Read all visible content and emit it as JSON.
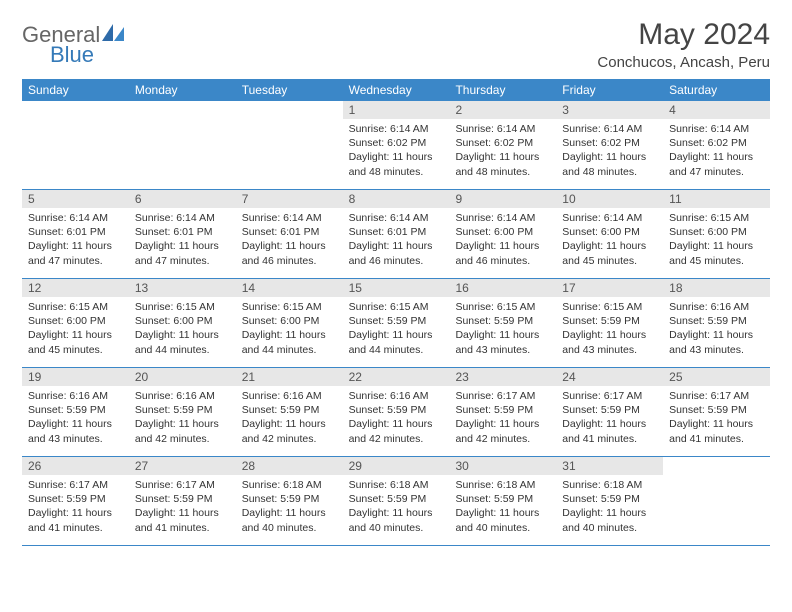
{
  "brand": {
    "line1": "General",
    "line2": "Blue"
  },
  "title": "May 2024",
  "location": "Conchucos, Ancash, Peru",
  "colors": {
    "header_bg": "#3b87c8",
    "header_text": "#ffffff",
    "daynum_bg": "#e7e7e7",
    "border": "#3b87c8",
    "brand_gray": "#666666",
    "brand_blue": "#357ab8"
  },
  "weekdays": [
    "Sunday",
    "Monday",
    "Tuesday",
    "Wednesday",
    "Thursday",
    "Friday",
    "Saturday"
  ],
  "weeks": [
    [
      {
        "num": "",
        "sunrise": "",
        "sunset": "",
        "daylight": ""
      },
      {
        "num": "",
        "sunrise": "",
        "sunset": "",
        "daylight": ""
      },
      {
        "num": "",
        "sunrise": "",
        "sunset": "",
        "daylight": ""
      },
      {
        "num": "1",
        "sunrise": "Sunrise: 6:14 AM",
        "sunset": "Sunset: 6:02 PM",
        "daylight": "Daylight: 11 hours and 48 minutes."
      },
      {
        "num": "2",
        "sunrise": "Sunrise: 6:14 AM",
        "sunset": "Sunset: 6:02 PM",
        "daylight": "Daylight: 11 hours and 48 minutes."
      },
      {
        "num": "3",
        "sunrise": "Sunrise: 6:14 AM",
        "sunset": "Sunset: 6:02 PM",
        "daylight": "Daylight: 11 hours and 48 minutes."
      },
      {
        "num": "4",
        "sunrise": "Sunrise: 6:14 AM",
        "sunset": "Sunset: 6:02 PM",
        "daylight": "Daylight: 11 hours and 47 minutes."
      }
    ],
    [
      {
        "num": "5",
        "sunrise": "Sunrise: 6:14 AM",
        "sunset": "Sunset: 6:01 PM",
        "daylight": "Daylight: 11 hours and 47 minutes."
      },
      {
        "num": "6",
        "sunrise": "Sunrise: 6:14 AM",
        "sunset": "Sunset: 6:01 PM",
        "daylight": "Daylight: 11 hours and 47 minutes."
      },
      {
        "num": "7",
        "sunrise": "Sunrise: 6:14 AM",
        "sunset": "Sunset: 6:01 PM",
        "daylight": "Daylight: 11 hours and 46 minutes."
      },
      {
        "num": "8",
        "sunrise": "Sunrise: 6:14 AM",
        "sunset": "Sunset: 6:01 PM",
        "daylight": "Daylight: 11 hours and 46 minutes."
      },
      {
        "num": "9",
        "sunrise": "Sunrise: 6:14 AM",
        "sunset": "Sunset: 6:00 PM",
        "daylight": "Daylight: 11 hours and 46 minutes."
      },
      {
        "num": "10",
        "sunrise": "Sunrise: 6:14 AM",
        "sunset": "Sunset: 6:00 PM",
        "daylight": "Daylight: 11 hours and 45 minutes."
      },
      {
        "num": "11",
        "sunrise": "Sunrise: 6:15 AM",
        "sunset": "Sunset: 6:00 PM",
        "daylight": "Daylight: 11 hours and 45 minutes."
      }
    ],
    [
      {
        "num": "12",
        "sunrise": "Sunrise: 6:15 AM",
        "sunset": "Sunset: 6:00 PM",
        "daylight": "Daylight: 11 hours and 45 minutes."
      },
      {
        "num": "13",
        "sunrise": "Sunrise: 6:15 AM",
        "sunset": "Sunset: 6:00 PM",
        "daylight": "Daylight: 11 hours and 44 minutes."
      },
      {
        "num": "14",
        "sunrise": "Sunrise: 6:15 AM",
        "sunset": "Sunset: 6:00 PM",
        "daylight": "Daylight: 11 hours and 44 minutes."
      },
      {
        "num": "15",
        "sunrise": "Sunrise: 6:15 AM",
        "sunset": "Sunset: 5:59 PM",
        "daylight": "Daylight: 11 hours and 44 minutes."
      },
      {
        "num": "16",
        "sunrise": "Sunrise: 6:15 AM",
        "sunset": "Sunset: 5:59 PM",
        "daylight": "Daylight: 11 hours and 43 minutes."
      },
      {
        "num": "17",
        "sunrise": "Sunrise: 6:15 AM",
        "sunset": "Sunset: 5:59 PM",
        "daylight": "Daylight: 11 hours and 43 minutes."
      },
      {
        "num": "18",
        "sunrise": "Sunrise: 6:16 AM",
        "sunset": "Sunset: 5:59 PM",
        "daylight": "Daylight: 11 hours and 43 minutes."
      }
    ],
    [
      {
        "num": "19",
        "sunrise": "Sunrise: 6:16 AM",
        "sunset": "Sunset: 5:59 PM",
        "daylight": "Daylight: 11 hours and 43 minutes."
      },
      {
        "num": "20",
        "sunrise": "Sunrise: 6:16 AM",
        "sunset": "Sunset: 5:59 PM",
        "daylight": "Daylight: 11 hours and 42 minutes."
      },
      {
        "num": "21",
        "sunrise": "Sunrise: 6:16 AM",
        "sunset": "Sunset: 5:59 PM",
        "daylight": "Daylight: 11 hours and 42 minutes."
      },
      {
        "num": "22",
        "sunrise": "Sunrise: 6:16 AM",
        "sunset": "Sunset: 5:59 PM",
        "daylight": "Daylight: 11 hours and 42 minutes."
      },
      {
        "num": "23",
        "sunrise": "Sunrise: 6:17 AM",
        "sunset": "Sunset: 5:59 PM",
        "daylight": "Daylight: 11 hours and 42 minutes."
      },
      {
        "num": "24",
        "sunrise": "Sunrise: 6:17 AM",
        "sunset": "Sunset: 5:59 PM",
        "daylight": "Daylight: 11 hours and 41 minutes."
      },
      {
        "num": "25",
        "sunrise": "Sunrise: 6:17 AM",
        "sunset": "Sunset: 5:59 PM",
        "daylight": "Daylight: 11 hours and 41 minutes."
      }
    ],
    [
      {
        "num": "26",
        "sunrise": "Sunrise: 6:17 AM",
        "sunset": "Sunset: 5:59 PM",
        "daylight": "Daylight: 11 hours and 41 minutes."
      },
      {
        "num": "27",
        "sunrise": "Sunrise: 6:17 AM",
        "sunset": "Sunset: 5:59 PM",
        "daylight": "Daylight: 11 hours and 41 minutes."
      },
      {
        "num": "28",
        "sunrise": "Sunrise: 6:18 AM",
        "sunset": "Sunset: 5:59 PM",
        "daylight": "Daylight: 11 hours and 40 minutes."
      },
      {
        "num": "29",
        "sunrise": "Sunrise: 6:18 AM",
        "sunset": "Sunset: 5:59 PM",
        "daylight": "Daylight: 11 hours and 40 minutes."
      },
      {
        "num": "30",
        "sunrise": "Sunrise: 6:18 AM",
        "sunset": "Sunset: 5:59 PM",
        "daylight": "Daylight: 11 hours and 40 minutes."
      },
      {
        "num": "31",
        "sunrise": "Sunrise: 6:18 AM",
        "sunset": "Sunset: 5:59 PM",
        "daylight": "Daylight: 11 hours and 40 minutes."
      },
      {
        "num": "",
        "sunrise": "",
        "sunset": "",
        "daylight": ""
      }
    ]
  ]
}
